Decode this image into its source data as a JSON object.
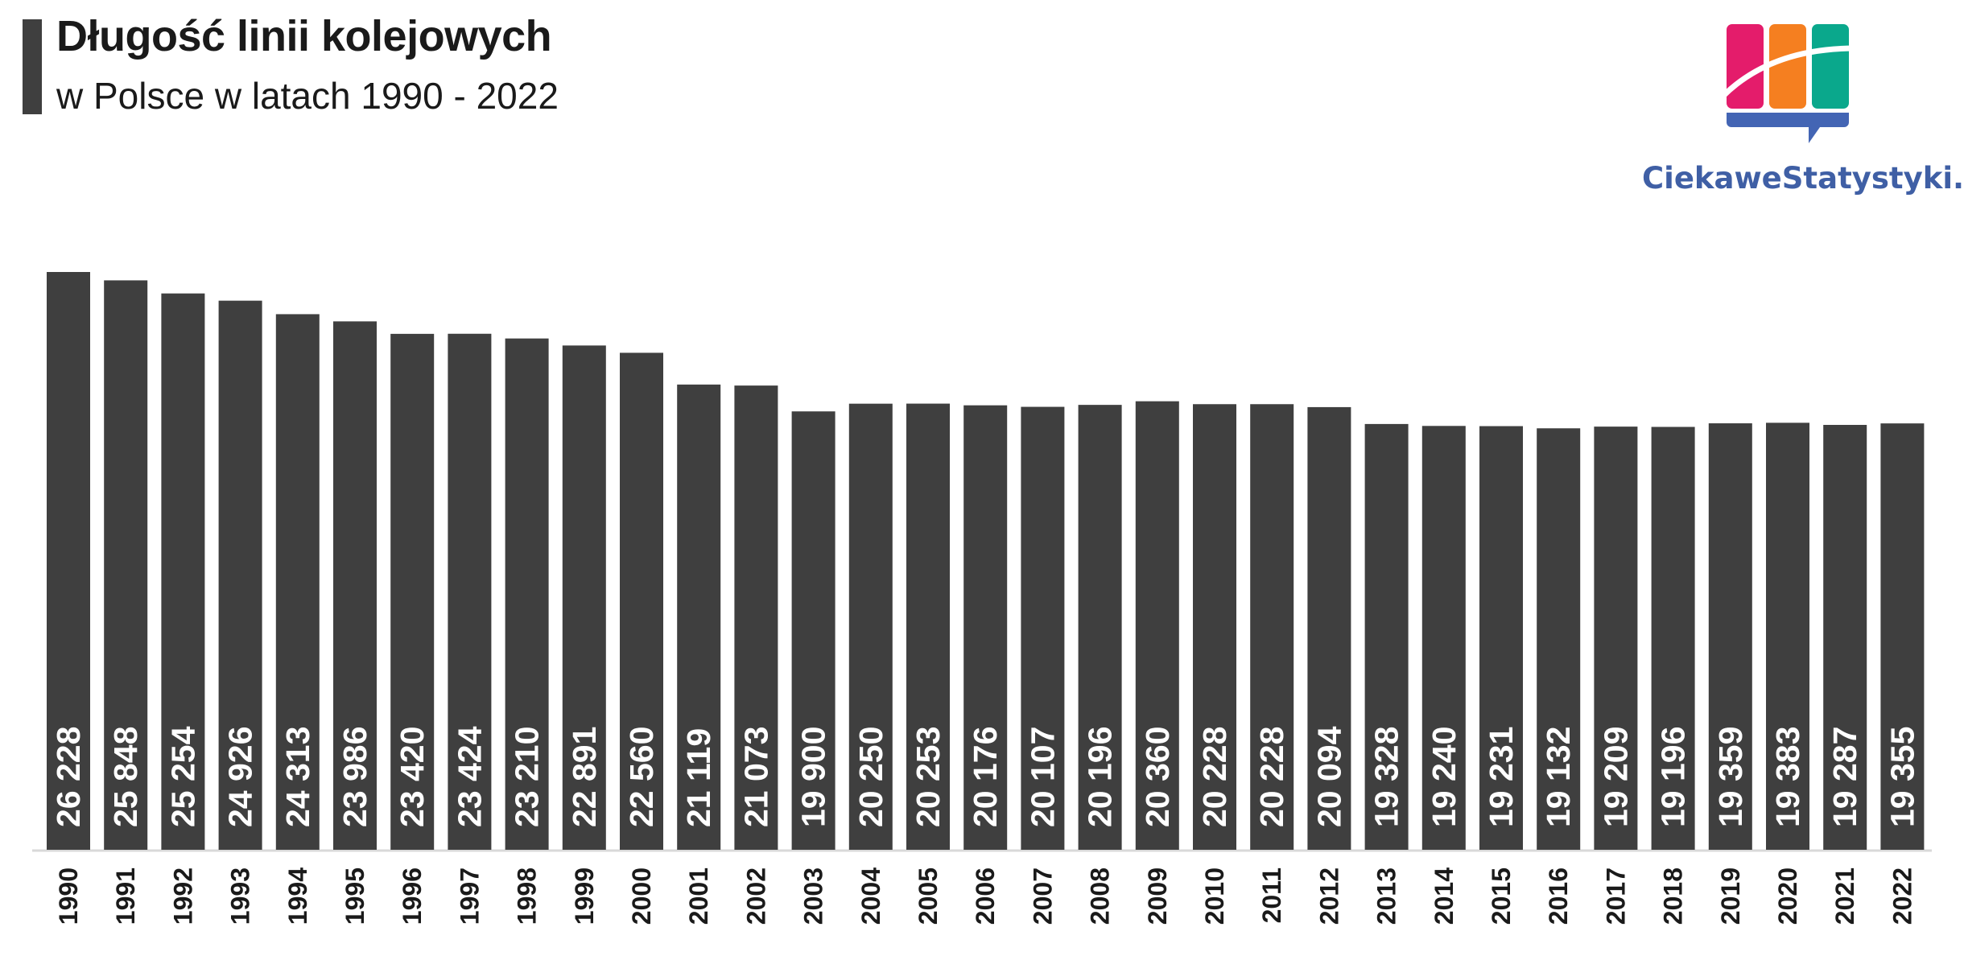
{
  "header": {
    "title": "Długość linii kolejowych",
    "subtitle": "w Polsce w latach 1990 - 2022"
  },
  "logo": {
    "text": "CiekaweStatystyki.pl",
    "colors": [
      "#e41c6b",
      "#f57f20",
      "#0aa88c",
      "#4365b4"
    ]
  },
  "colors": {
    "bar": "#3f3f3f",
    "bar_label": "#ffffff",
    "axis_label": "#1a1a1a",
    "axis_line": "#d9d9d9"
  },
  "chart_data": {
    "type": "bar",
    "title": "Długość linii kolejowych",
    "subtitle": "w Polsce w latach 1990 - 2022",
    "categories": [
      "1990",
      "1991",
      "1992",
      "1993",
      "1994",
      "1995",
      "1996",
      "1997",
      "1998",
      "1999",
      "2000",
      "2001",
      "2002",
      "2003",
      "2004",
      "2005",
      "2006",
      "2007",
      "2008",
      "2009",
      "2010",
      "2011",
      "2012",
      "2013",
      "2014",
      "2015",
      "2016",
      "2017",
      "2018",
      "2019",
      "2020",
      "2021",
      "2022"
    ],
    "values": [
      26228,
      25848,
      25254,
      24926,
      24313,
      23986,
      23420,
      23424,
      23210,
      22891,
      22560,
      21119,
      21073,
      19900,
      20250,
      20253,
      20176,
      20107,
      20196,
      20360,
      20228,
      20228,
      20094,
      19328,
      19240,
      19231,
      19132,
      19209,
      19196,
      19359,
      19383,
      19287,
      19355
    ],
    "labels": [
      "26 228",
      "25 848",
      "25 254",
      "24 926",
      "24 313",
      "23 986",
      "23 420",
      "23 424",
      "23 210",
      "22 891",
      "22 560",
      "21 119",
      "21 073",
      "19 900",
      "20 250",
      "20 253",
      "20 176",
      "20 107",
      "20 196",
      "20 360",
      "20 228",
      "20 228",
      "20 094",
      "19 328",
      "19 240",
      "19 231",
      "19 132",
      "19 209",
      "19 196",
      "19 359",
      "19 383",
      "19 287",
      "19 355"
    ],
    "xlabel": "",
    "ylabel": "",
    "ylim": [
      0,
      26228
    ],
    "grid": false,
    "legend": "none"
  }
}
